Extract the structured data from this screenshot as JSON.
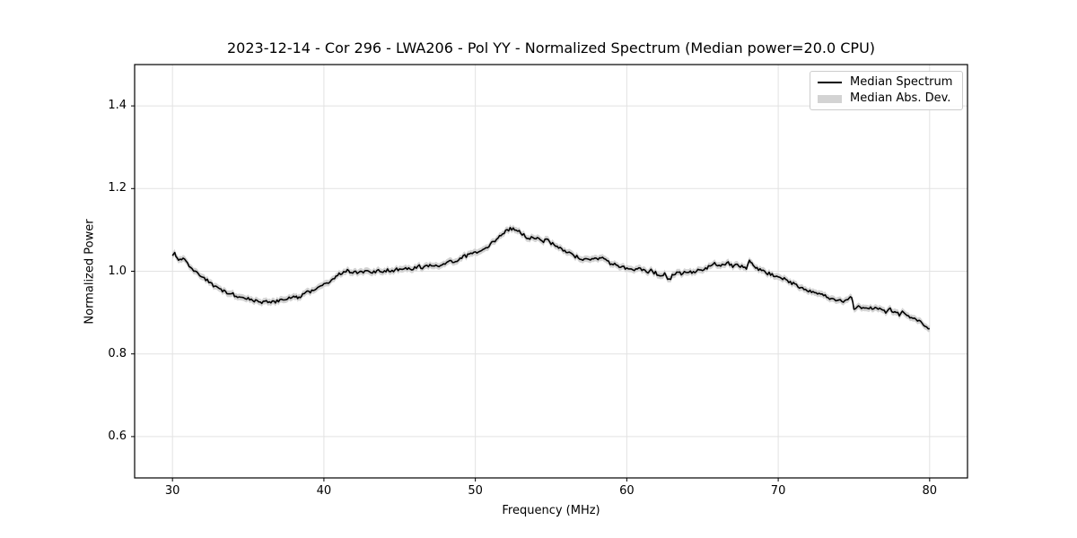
{
  "chart_data": {
    "type": "line",
    "title": "2023-12-14 - Cor 296 - LWA206 - Pol YY - Normalized Spectrum (Median power=20.0 CPU)",
    "xlabel": "Frequency (MHz)",
    "ylabel": "Normalized Power",
    "xlim": [
      27.5,
      82.5
    ],
    "ylim": [
      0.5,
      1.5
    ],
    "x_ticks": [
      30,
      40,
      50,
      60,
      70,
      80
    ],
    "y_ticks": [
      0.6,
      0.8,
      1.0,
      1.2,
      1.4
    ],
    "grid": true,
    "background": "#ffffff",
    "grid_color": "#e2e2e2",
    "spine_color": "#000000",
    "legend": {
      "position": "upper right",
      "entries": [
        {
          "label": "Median Spectrum",
          "handle": "line",
          "color": "#000000"
        },
        {
          "label": "Median Abs. Dev.",
          "handle": "patch",
          "color": "#d3d3d3"
        }
      ]
    },
    "series": [
      {
        "name": "Median Spectrum",
        "type": "line",
        "color": "#000000",
        "points": [
          [
            30.0,
            1.036
          ],
          [
            30.15,
            1.044
          ],
          [
            30.3,
            1.03
          ],
          [
            30.5,
            1.028
          ],
          [
            30.7,
            1.031
          ],
          [
            31.0,
            1.018
          ],
          [
            31.3,
            1.003
          ],
          [
            31.6,
            0.997
          ],
          [
            31.9,
            0.989
          ],
          [
            32.2,
            0.981
          ],
          [
            32.5,
            0.972
          ],
          [
            32.8,
            0.963
          ],
          [
            33.1,
            0.956
          ],
          [
            33.4,
            0.951
          ],
          [
            33.7,
            0.946
          ],
          [
            34.0,
            0.944
          ],
          [
            34.2,
            0.937
          ],
          [
            34.5,
            0.934
          ],
          [
            34.8,
            0.937
          ],
          [
            35.1,
            0.932
          ],
          [
            35.4,
            0.929
          ],
          [
            35.7,
            0.927
          ],
          [
            36.0,
            0.925
          ],
          [
            36.3,
            0.928
          ],
          [
            36.6,
            0.925
          ],
          [
            36.9,
            0.927
          ],
          [
            37.2,
            0.931
          ],
          [
            37.5,
            0.934
          ],
          [
            37.8,
            0.938
          ],
          [
            38.1,
            0.941
          ],
          [
            38.35,
            0.936
          ],
          [
            38.6,
            0.944
          ],
          [
            38.9,
            0.949
          ],
          [
            39.2,
            0.953
          ],
          [
            39.5,
            0.957
          ],
          [
            39.8,
            0.963
          ],
          [
            40.1,
            0.97
          ],
          [
            40.4,
            0.977
          ],
          [
            40.7,
            0.984
          ],
          [
            41.0,
            0.992
          ],
          [
            41.3,
            1.0
          ],
          [
            41.55,
            1.003
          ],
          [
            41.8,
            0.995
          ],
          [
            42.1,
            0.997
          ],
          [
            42.4,
            0.999
          ],
          [
            42.7,
            0.997
          ],
          [
            43.0,
            1.0
          ],
          [
            43.3,
            0.998
          ],
          [
            43.6,
            1.002
          ],
          [
            43.9,
            0.999
          ],
          [
            44.2,
            1.003
          ],
          [
            44.5,
            1.001
          ],
          [
            44.8,
            1.004
          ],
          [
            45.1,
            1.002
          ],
          [
            45.4,
            1.006
          ],
          [
            45.7,
            1.004
          ],
          [
            46.0,
            1.008
          ],
          [
            46.3,
            1.012
          ],
          [
            46.6,
            1.009
          ],
          [
            46.9,
            1.012
          ],
          [
            47.2,
            1.015
          ],
          [
            47.5,
            1.011
          ],
          [
            47.8,
            1.016
          ],
          [
            48.1,
            1.02
          ],
          [
            48.4,
            1.023
          ],
          [
            48.7,
            1.026
          ],
          [
            49.0,
            1.031
          ],
          [
            49.3,
            1.036
          ],
          [
            49.6,
            1.04
          ],
          [
            49.9,
            1.044
          ],
          [
            50.2,
            1.049
          ],
          [
            50.5,
            1.055
          ],
          [
            50.8,
            1.06
          ],
          [
            51.1,
            1.068
          ],
          [
            51.4,
            1.077
          ],
          [
            51.7,
            1.087
          ],
          [
            52.0,
            1.096
          ],
          [
            52.3,
            1.103
          ],
          [
            52.6,
            1.1
          ],
          [
            52.9,
            1.096
          ],
          [
            53.2,
            1.089
          ],
          [
            53.5,
            1.078
          ],
          [
            53.8,
            1.084
          ],
          [
            54.1,
            1.079
          ],
          [
            54.4,
            1.072
          ],
          [
            54.7,
            1.076
          ],
          [
            55.0,
            1.068
          ],
          [
            55.3,
            1.061
          ],
          [
            55.6,
            1.056
          ],
          [
            55.9,
            1.05
          ],
          [
            56.2,
            1.044
          ],
          [
            56.5,
            1.038
          ],
          [
            56.8,
            1.033
          ],
          [
            57.1,
            1.03
          ],
          [
            57.4,
            1.026
          ],
          [
            57.7,
            1.032
          ],
          [
            58.0,
            1.028
          ],
          [
            58.3,
            1.034
          ],
          [
            58.6,
            1.025
          ],
          [
            58.9,
            1.02
          ],
          [
            59.2,
            1.016
          ],
          [
            59.5,
            1.013
          ],
          [
            59.8,
            1.01
          ],
          [
            60.1,
            1.006
          ],
          [
            60.4,
            1.003
          ],
          [
            60.7,
            1.009
          ],
          [
            61.0,
            1.002
          ],
          [
            61.3,
            0.999
          ],
          [
            61.6,
            1.001
          ],
          [
            61.9,
            0.996
          ],
          [
            62.2,
            0.986
          ],
          [
            62.5,
            0.993
          ],
          [
            62.8,
            0.979
          ],
          [
            63.1,
            0.993
          ],
          [
            63.4,
            0.997
          ],
          [
            63.7,
            0.994
          ],
          [
            64.0,
            0.999
          ],
          [
            64.3,
            0.997
          ],
          [
            64.6,
            1.001
          ],
          [
            64.9,
            1.004
          ],
          [
            65.2,
            1.007
          ],
          [
            65.5,
            1.011
          ],
          [
            65.8,
            1.018
          ],
          [
            66.1,
            1.011
          ],
          [
            66.4,
            1.015
          ],
          [
            66.7,
            1.019
          ],
          [
            67.0,
            1.013
          ],
          [
            67.3,
            1.016
          ],
          [
            67.6,
            1.011
          ],
          [
            67.9,
            1.009
          ],
          [
            68.1,
            1.026
          ],
          [
            68.35,
            1.013
          ],
          [
            68.6,
            1.006
          ],
          [
            68.9,
            1.001
          ],
          [
            69.2,
            0.997
          ],
          [
            69.5,
            0.993
          ],
          [
            69.8,
            0.99
          ],
          [
            70.1,
            0.987
          ],
          [
            70.4,
            0.981
          ],
          [
            70.7,
            0.975
          ],
          [
            71.0,
            0.969
          ],
          [
            71.3,
            0.965
          ],
          [
            71.6,
            0.959
          ],
          [
            71.9,
            0.955
          ],
          [
            72.2,
            0.952
          ],
          [
            72.5,
            0.948
          ],
          [
            72.8,
            0.944
          ],
          [
            73.1,
            0.94
          ],
          [
            73.4,
            0.936
          ],
          [
            73.7,
            0.931
          ],
          [
            74.0,
            0.929
          ],
          [
            74.3,
            0.925
          ],
          [
            74.6,
            0.93
          ],
          [
            74.85,
            0.937
          ],
          [
            75.0,
            0.906
          ],
          [
            75.3,
            0.914
          ],
          [
            75.6,
            0.911
          ],
          [
            75.9,
            0.913
          ],
          [
            76.2,
            0.909
          ],
          [
            76.5,
            0.912
          ],
          [
            76.8,
            0.906
          ],
          [
            77.1,
            0.902
          ],
          [
            77.4,
            0.908
          ],
          [
            77.7,
            0.901
          ],
          [
            78.0,
            0.896
          ],
          [
            78.3,
            0.903
          ],
          [
            78.6,
            0.891
          ],
          [
            78.9,
            0.886
          ],
          [
            79.2,
            0.88
          ],
          [
            79.5,
            0.874
          ],
          [
            79.8,
            0.866
          ],
          [
            80.0,
            0.861
          ]
        ]
      },
      {
        "name": "Median Abs. Dev.",
        "type": "band",
        "color": "#d3d3d3",
        "half_width": 0.008
      }
    ],
    "render_hints": {
      "noise_amplitude": 0.004,
      "noise_step_mhz": 0.1
    }
  }
}
